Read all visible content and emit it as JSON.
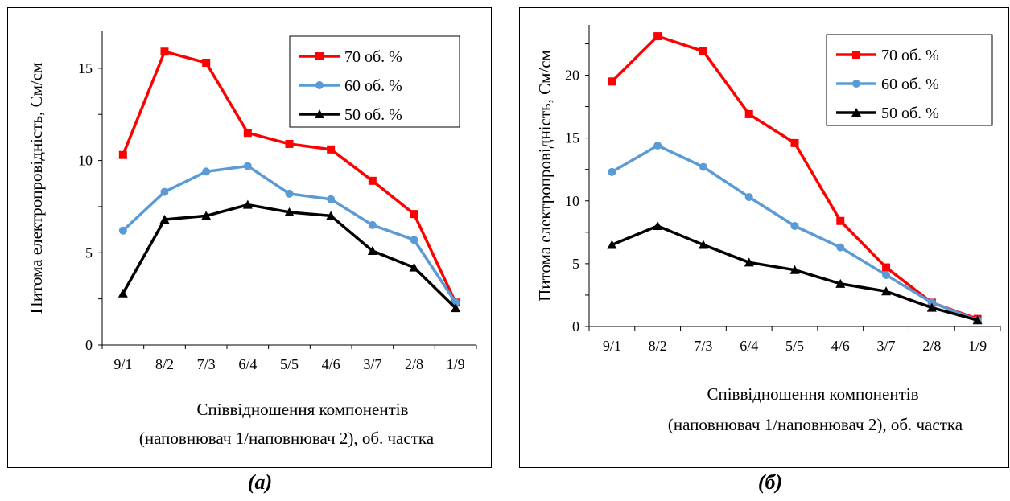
{
  "chart_data": [
    {
      "type": "line",
      "panel_label": "(а)",
      "ylabel": "Питома електропровідність, См/см",
      "xlabel_line1": "Співвідношення компонентів",
      "xlabel_line2": "(наповнювач 1/наповнювач 2), об. частка",
      "categories": [
        "9/1",
        "8/2",
        "7/3",
        "6/4",
        "5/5",
        "4/6",
        "3/7",
        "2/8",
        "1/9"
      ],
      "ylim": [
        0,
        17
      ],
      "yticks": [
        0,
        5,
        10,
        15
      ],
      "grid": false,
      "legend_position": "top-right",
      "series": [
        {
          "name": "70 об. %",
          "color": "#ff0000",
          "marker": "square",
          "values": [
            10.3,
            15.9,
            15.3,
            11.5,
            10.9,
            10.6,
            8.9,
            7.1,
            2.3
          ]
        },
        {
          "name": "60 об. %",
          "color": "#5b9bd5",
          "marker": "circle",
          "values": [
            6.2,
            8.3,
            9.4,
            9.7,
            8.2,
            7.9,
            6.5,
            5.7,
            2.3
          ]
        },
        {
          "name": "50 об. %",
          "color": "#000000",
          "marker": "triangle",
          "values": [
            2.8,
            6.8,
            7.0,
            7.6,
            7.2,
            7.0,
            5.1,
            4.2,
            2.0
          ]
        }
      ]
    },
    {
      "type": "line",
      "panel_label": "(б)",
      "ylabel": "Питома електропровідність, См/см",
      "xlabel_line1": "Співвідношення компонентів",
      "xlabel_line2": "(наповнювач 1/наповнювач 2), об. частка",
      "categories": [
        "9/1",
        "8/2",
        "7/3",
        "6/4",
        "5/5",
        "4/6",
        "3/7",
        "2/8",
        "1/9"
      ],
      "ylim": [
        0,
        24
      ],
      "yticks": [
        0,
        5,
        10,
        15,
        20
      ],
      "grid": false,
      "legend_position": "top-right",
      "series": [
        {
          "name": "70 об. %",
          "color": "#ff0000",
          "marker": "square",
          "values": [
            19.5,
            23.1,
            21.9,
            16.9,
            14.6,
            8.4,
            4.7,
            1.9,
            0.6
          ]
        },
        {
          "name": "60 об. %",
          "color": "#5b9bd5",
          "marker": "circle",
          "values": [
            12.3,
            14.4,
            12.7,
            10.3,
            8.0,
            6.3,
            4.1,
            1.9,
            0.5
          ]
        },
        {
          "name": "50 об. %",
          "color": "#000000",
          "marker": "triangle",
          "values": [
            6.5,
            8.0,
            6.5,
            5.1,
            4.5,
            3.4,
            2.8,
            1.5,
            0.5
          ]
        }
      ]
    }
  ]
}
